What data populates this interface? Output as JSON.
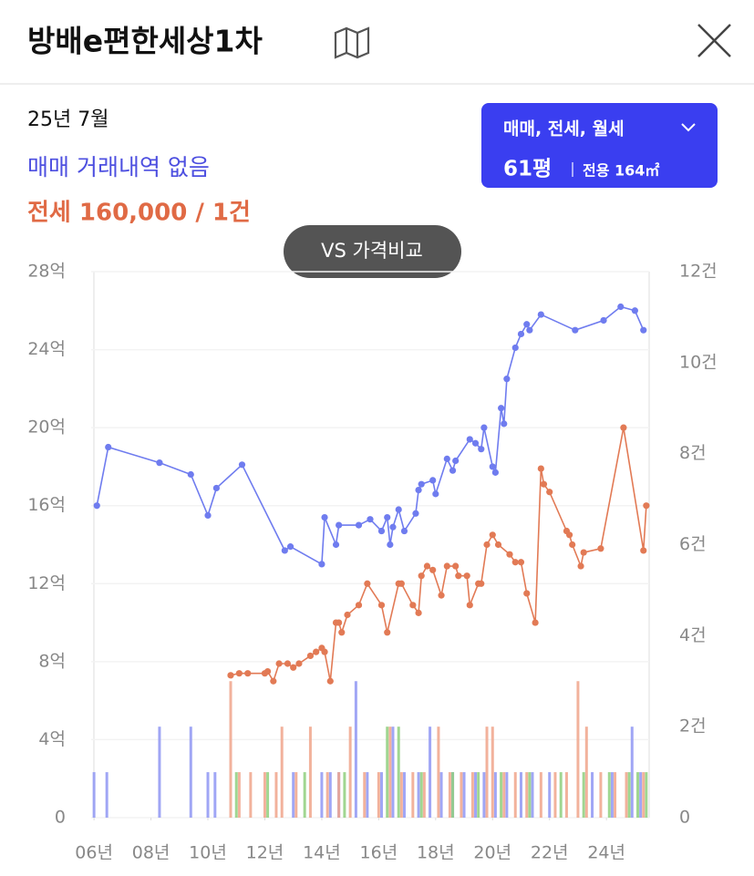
{
  "header": {
    "title": "방배e편한세상1차"
  },
  "info": {
    "date": "25년 7월",
    "sale_status": "매매 거래내역 없음",
    "jeonse_status": "전세 160,000 / 1건"
  },
  "filter": {
    "deal_types": "매매, 전세, 월세",
    "size": "61평",
    "area": "전용 164㎡"
  },
  "compare_button": "VS 가격비교",
  "chart_data": {
    "type": "combo",
    "xlim": [
      2005.9,
      2025.5
    ],
    "xticks": [
      {
        "value": 2006,
        "label": "06년"
      },
      {
        "value": 2008,
        "label": "08년"
      },
      {
        "value": 2010,
        "label": "10년"
      },
      {
        "value": 2012,
        "label": "12년"
      },
      {
        "value": 2014,
        "label": "14년"
      },
      {
        "value": 2016,
        "label": "16년"
      },
      {
        "value": 2018,
        "label": "18년"
      },
      {
        "value": 2020,
        "label": "20년"
      },
      {
        "value": 2022,
        "label": "22년"
      },
      {
        "value": 2024,
        "label": "24년"
      }
    ],
    "ylim": [
      0,
      28
    ],
    "yticks": [
      0,
      {
        "value": 4,
        "label": "4억"
      },
      {
        "value": 8,
        "label": "8억"
      },
      {
        "value": 12,
        "label": "12억"
      },
      {
        "value": 16,
        "label": "16억"
      },
      {
        "value": 20,
        "label": "20억"
      },
      {
        "value": 24,
        "label": "24억"
      },
      {
        "value": 28,
        "label": "28억"
      }
    ],
    "y2lim": [
      0,
      12
    ],
    "y2ticks": [
      0,
      {
        "value": 2,
        "label": "2건"
      },
      {
        "value": 4,
        "label": "4건"
      },
      {
        "value": 6,
        "label": "6건"
      },
      {
        "value": 8,
        "label": "8건"
      },
      {
        "value": 10,
        "label": "10건"
      },
      {
        "value": 12,
        "label": "12건"
      }
    ],
    "grid": true,
    "series": [
      {
        "type": "bar",
        "axis": "y2",
        "color": "#8f97f3",
        "x": [
          2006.0,
          2006.45,
          2008.3,
          2009.4,
          2010.0,
          2010.25,
          2013.0,
          2014.0,
          2014.3,
          2014.6,
          2015.2,
          2015.6,
          2016.1,
          2016.5,
          2016.9,
          2017.4,
          2017.8,
          2018.2,
          2018.6,
          2019.0,
          2019.4,
          2019.7,
          2020.1,
          2020.5,
          2021.0,
          2021.4,
          2022.0,
          2023.5,
          2024.2,
          2024.9,
          2025.2
        ],
        "values": [
          1,
          1,
          2,
          2,
          1,
          1,
          1,
          1,
          1,
          1,
          3,
          1,
          1,
          2,
          1,
          1,
          2,
          1,
          1,
          1,
          1,
          1,
          1,
          1,
          1,
          1,
          1,
          1,
          1,
          2,
          1
        ]
      },
      {
        "type": "bar",
        "axis": "y2",
        "color": "#f0a58b",
        "x": [
          2010.8,
          2011.1,
          2011.5,
          2012.0,
          2012.4,
          2012.6,
          2013.1,
          2013.6,
          2014.2,
          2014.6,
          2015.0,
          2015.5,
          2016.0,
          2016.4,
          2016.8,
          2017.2,
          2017.6,
          2018.1,
          2018.5,
          2018.9,
          2019.3,
          2019.8,
          2020.0,
          2020.4,
          2020.8,
          2021.2,
          2021.7,
          2022.2,
          2022.6,
          2023.0,
          2023.3,
          2023.8,
          2024.3,
          2024.7,
          2025.3
        ],
        "values": [
          3,
          1,
          1,
          1,
          1,
          2,
          1,
          2,
          1,
          1,
          2,
          1,
          1,
          2,
          1,
          1,
          1,
          2,
          1,
          1,
          1,
          2,
          2,
          1,
          1,
          1,
          1,
          1,
          1,
          3,
          2,
          1,
          1,
          1,
          1
        ]
      },
      {
        "type": "bar",
        "axis": "y2",
        "color": "#8fcf7e",
        "x": [
          2011.0,
          2012.1,
          2013.4,
          2014.8,
          2016.3,
          2016.7,
          2017.5,
          2018.6,
          2019.5,
          2020.3,
          2021.3,
          2022.4,
          2023.2,
          2024.1,
          2024.8,
          2025.1,
          2025.4
        ],
        "values": [
          1,
          1,
          1,
          1,
          2,
          2,
          1,
          1,
          1,
          1,
          1,
          1,
          1,
          1,
          1,
          1,
          1
        ]
      },
      {
        "type": "line",
        "color": "#6f7cef",
        "x": [
          2006.1,
          2006.5,
          2008.3,
          2009.4,
          2010.0,
          2010.3,
          2011.2,
          2012.7,
          2012.9,
          2014.0,
          2014.1,
          2014.5,
          2014.6,
          2015.3,
          2015.7,
          2016.1,
          2016.3,
          2016.4,
          2016.5,
          2016.7,
          2016.9,
          2017.3,
          2017.4,
          2017.5,
          2017.9,
          2018.0,
          2018.4,
          2018.6,
          2018.7,
          2019.2,
          2019.4,
          2019.6,
          2019.7,
          2020.0,
          2020.1,
          2020.3,
          2020.4,
          2020.5,
          2020.8,
          2021.0,
          2021.2,
          2021.3,
          2021.7,
          2022.9,
          2023.9,
          2024.5,
          2025.0,
          2025.3
        ],
        "values": [
          16.0,
          19.0,
          18.2,
          17.6,
          15.5,
          16.9,
          18.1,
          13.7,
          13.9,
          13.0,
          15.4,
          14.0,
          15.0,
          15.0,
          15.3,
          14.7,
          15.4,
          14.0,
          14.9,
          15.8,
          14.7,
          15.6,
          16.8,
          17.1,
          17.3,
          16.6,
          18.4,
          17.8,
          18.3,
          19.4,
          19.2,
          18.9,
          20.0,
          18.0,
          17.7,
          21.0,
          20.2,
          22.5,
          24.1,
          24.8,
          25.3,
          25.0,
          25.8,
          25.0,
          25.5,
          26.2,
          26.0,
          25.0
        ]
      },
      {
        "type": "line",
        "color": "#e27a55",
        "x": [
          2010.8,
          2011.1,
          2011.4,
          2012.0,
          2012.1,
          2012.3,
          2012.5,
          2012.8,
          2013.0,
          2013.2,
          2013.6,
          2013.8,
          2014.0,
          2014.1,
          2014.3,
          2014.5,
          2014.6,
          2014.7,
          2014.9,
          2015.3,
          2015.6,
          2016.1,
          2016.3,
          2016.7,
          2016.8,
          2017.2,
          2017.4,
          2017.5,
          2017.7,
          2017.9,
          2018.2,
          2018.4,
          2018.7,
          2018.8,
          2019.1,
          2019.2,
          2019.5,
          2019.6,
          2019.8,
          2020.0,
          2020.2,
          2020.6,
          2020.8,
          2021.0,
          2021.2,
          2021.5,
          2021.7,
          2021.8,
          2022.0,
          2022.6,
          2022.7,
          2022.8,
          2023.1,
          2023.2,
          2023.8,
          2024.6,
          2025.3,
          2025.4
        ],
        "values": [
          7.3,
          7.4,
          7.4,
          7.4,
          7.5,
          7.0,
          7.9,
          7.9,
          7.7,
          7.9,
          8.3,
          8.5,
          8.7,
          8.5,
          7.0,
          10.0,
          10.0,
          9.5,
          10.4,
          10.9,
          12.0,
          10.9,
          9.5,
          12.0,
          12.0,
          10.9,
          10.5,
          12.4,
          12.9,
          12.7,
          11.4,
          12.9,
          12.9,
          12.4,
          12.4,
          10.9,
          12.0,
          12.0,
          14.0,
          14.5,
          14.0,
          13.5,
          13.1,
          13.1,
          11.5,
          10.0,
          17.9,
          17.1,
          16.7,
          14.7,
          14.5,
          14.0,
          12.9,
          13.6,
          13.8,
          20.0,
          13.7,
          16.0
        ]
      }
    ]
  }
}
